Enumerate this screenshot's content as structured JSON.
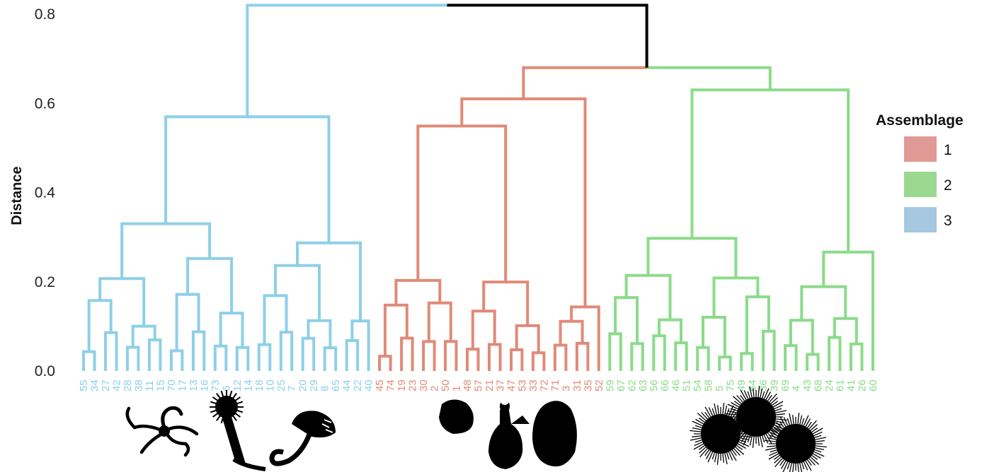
{
  "chart_data": {
    "type": "dendrogram",
    "ylabel": "Distance",
    "ylim": [
      0,
      0.8
    ],
    "yticks": [
      "0.0",
      "0.2",
      "0.4",
      "0.6",
      "0.8"
    ],
    "legend": {
      "title": "Assemblage",
      "placement": "right",
      "items": [
        {
          "label": "1",
          "color": "#e09a95"
        },
        {
          "label": "2",
          "color": "#9bd890"
        },
        {
          "label": "3",
          "color": "#a5c8e0"
        }
      ]
    },
    "clusters": [
      {
        "assemblage": "3",
        "color": "#8ecfe8",
        "leaves": [
          "55",
          "34",
          "27",
          "42",
          "28",
          "38",
          "11",
          "15",
          "70",
          "17",
          "13",
          "16",
          "73",
          "6",
          "12",
          "14",
          "18",
          "10",
          "25",
          "7",
          "20",
          "29",
          "8",
          "65",
          "44",
          "22",
          "40"
        ]
      },
      {
        "assemblage": "1",
        "color": "#e08a78",
        "leaves": [
          "45",
          "74",
          "19",
          "23",
          "30",
          "2",
          "50",
          "1",
          "48",
          "57",
          "21",
          "37",
          "47",
          "53",
          "33",
          "72",
          "71",
          "3",
          "31",
          "35",
          "52"
        ]
      },
      {
        "assemblage": "2",
        "color": "#8bdb8b",
        "leaves": [
          "59",
          "67",
          "62",
          "63",
          "56",
          "66",
          "46",
          "51",
          "54",
          "58",
          "5",
          "75",
          "49",
          "64",
          "36",
          "39",
          "69",
          "4",
          "43",
          "68",
          "24",
          "61",
          "41",
          "26",
          "60"
        ]
      }
    ],
    "root_color": "#000000",
    "merges": [
      {
        "left": "3",
        "right": "1+2",
        "height": 0.82
      },
      {
        "left": "1",
        "right": "2",
        "height": 0.68
      }
    ],
    "icons": [
      "brittle-star-icon",
      "tube-worm-icon",
      "coiled-worm-icon",
      "sponge-icon",
      "sea-squirt-icon",
      "sea-cucumber-icon",
      "sea-urchin-icon"
    ]
  }
}
